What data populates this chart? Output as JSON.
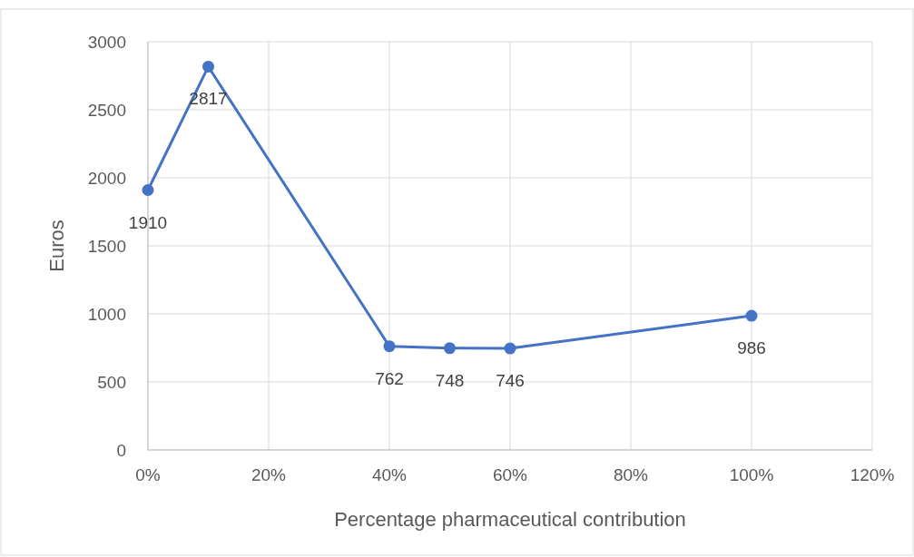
{
  "chart_data": {
    "type": "line",
    "xlabel": "Percentage pharmaceutical contribution",
    "ylabel": "Euros",
    "x": [
      0,
      10,
      40,
      50,
      60,
      100
    ],
    "values": [
      1910,
      2817,
      762,
      748,
      746,
      986
    ],
    "color": "#4472c4",
    "xlim": [
      0,
      120
    ],
    "xticks": [
      {
        "value": 0,
        "label": "0%"
      },
      {
        "value": 20,
        "label": "20%"
      },
      {
        "value": 40,
        "label": "40%"
      },
      {
        "value": 60,
        "label": "60%"
      },
      {
        "value": 80,
        "label": "80%"
      },
      {
        "value": 100,
        "label": "100%"
      },
      {
        "value": 120,
        "label": "120%"
      }
    ],
    "ylim": [
      0,
      3000
    ],
    "yticks": [
      0,
      500,
      1000,
      1500,
      2000,
      2500,
      3000
    ],
    "grid": true,
    "marker": "circle",
    "line_style": "solid",
    "data_labels": true
  }
}
